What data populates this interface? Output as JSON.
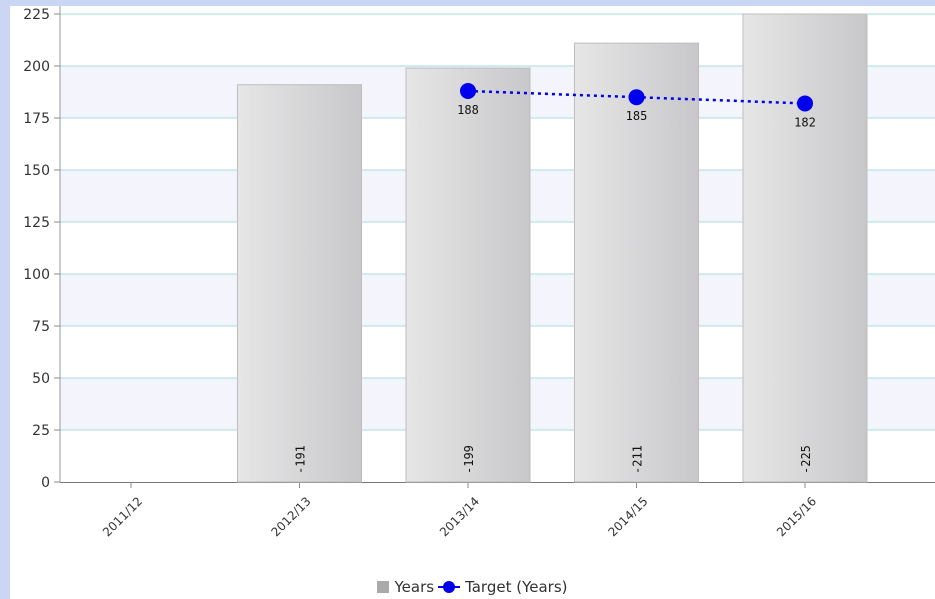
{
  "chart_data": {
    "type": "bar",
    "categories": [
      "2011/12",
      "2012/13",
      "2013/14",
      "2014/15",
      "2015/16"
    ],
    "series": [
      {
        "name": "Years",
        "type": "bar",
        "values": [
          null,
          191,
          199,
          211,
          225
        ],
        "color": "#d4d4d6"
      },
      {
        "name": "Target (Years)",
        "type": "line",
        "values": [
          null,
          null,
          188,
          185,
          182
        ],
        "color": "#0000ee",
        "line_style": "dotted"
      }
    ],
    "yticks": [
      0,
      25,
      50,
      75,
      100,
      125,
      150,
      175,
      200,
      225
    ],
    "ylim": [
      0,
      225
    ],
    "grid": true,
    "legend": "bottom-center",
    "gridline_color": "#a9dde2",
    "band_color": "#f3f4fc"
  }
}
